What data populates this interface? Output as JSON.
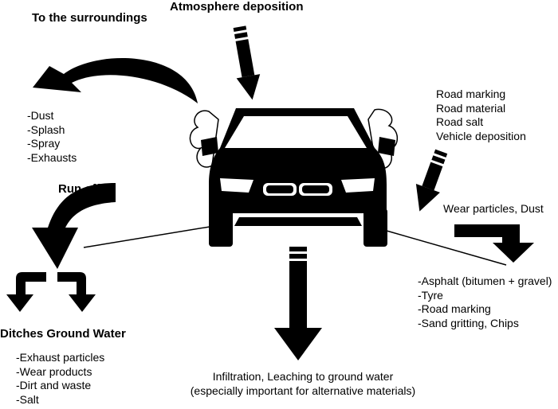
{
  "labels": {
    "surroundings": "To the surroundings",
    "atmosphere": "Atmosphere deposition",
    "run_off": "Run off",
    "ditches": "Ditches Ground Water",
    "wear": "Wear particles, Dust",
    "infiltration_1": "Infiltration, Leaching to ground water",
    "infiltration_2": "(especially important for alternative materials)"
  },
  "surroundings_items": [
    "-Dust",
    "-Splash",
    "-Spray",
    "-Exhausts"
  ],
  "road_items": [
    "Road marking",
    "Road material",
    "Road salt",
    "Vehicle deposition"
  ],
  "wear_items": [
    "-Asphalt (bitumen + gravel)",
    "-Tyre",
    "-Road marking",
    "-Sand gritting, Chips"
  ],
  "ditches_items": [
    "-Exhaust particles",
    "-Wear products",
    "-Dirt and waste",
    "-Salt"
  ],
  "icons": [
    "car-icon",
    "dust-cloud-icon",
    "curved-arrow-icon",
    "split-arrow-icon",
    "down-arrow-icon"
  ],
  "colors": {
    "ink": "#000000",
    "background": "#ffffff"
  }
}
